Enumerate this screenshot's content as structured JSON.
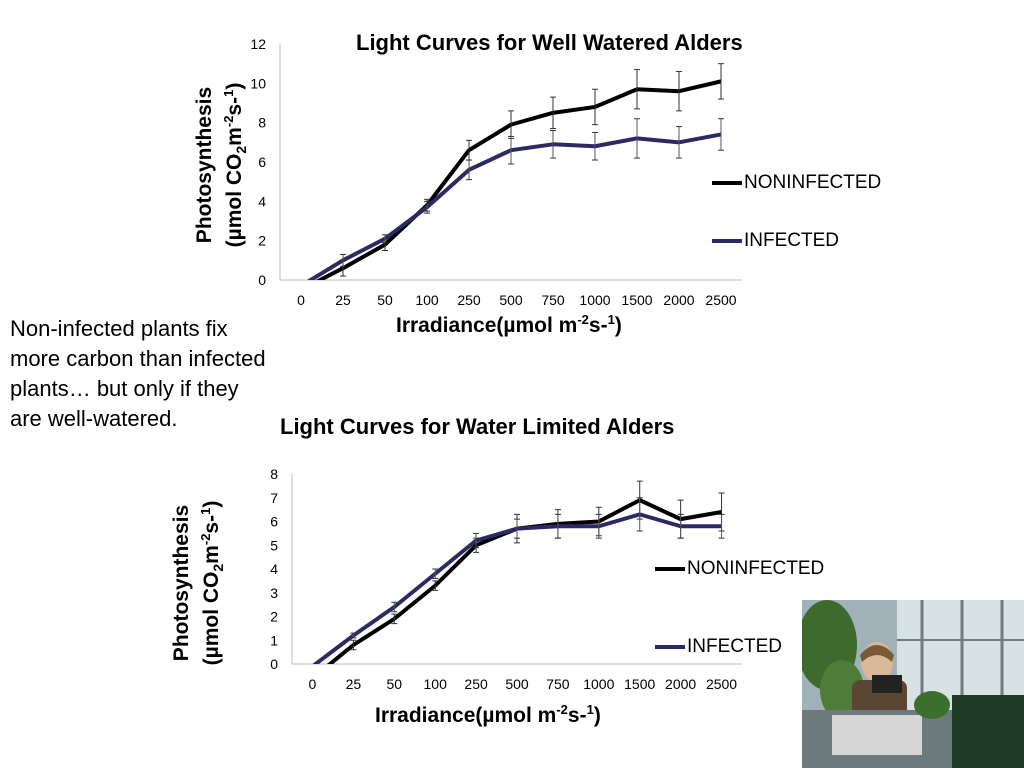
{
  "note": {
    "lines": [
      "Non-infected plants fix",
      "more carbon than infected",
      "plants… but only if they",
      "are well-watered."
    ]
  },
  "chart_data": [
    {
      "type": "line",
      "title": "Light Curves for Well Watered Alders",
      "ylabel_line1": "Photosynthesis",
      "ylabel_line2": "(µmol CO2m-2s-1)",
      "xlabel": "Irradiance(µmol m-2s-1)",
      "categories": [
        "0",
        "25",
        "50",
        "100",
        "250",
        "500",
        "750",
        "1000",
        "1500",
        "2000",
        "2500"
      ],
      "yticks": [
        "0",
        "2",
        "4",
        "6",
        "8",
        "10",
        "12"
      ],
      "ylim": [
        0,
        12
      ],
      "grid": false,
      "legend_position": "right",
      "series": [
        {
          "name": "NONINFECTED",
          "color": "#000000",
          "values": [
            -0.5,
            0.6,
            1.8,
            3.8,
            6.6,
            7.9,
            8.5,
            8.8,
            9.7,
            9.6,
            10.1
          ],
          "errors": [
            null,
            0.4,
            0.3,
            0.3,
            0.5,
            0.7,
            0.8,
            0.9,
            1.0,
            1.0,
            0.9
          ]
        },
        {
          "name": "INFECTED",
          "color": "#2b2b63",
          "values": [
            -0.3,
            1.0,
            2.1,
            3.7,
            5.6,
            6.6,
            6.9,
            6.8,
            7.2,
            7.0,
            7.4
          ],
          "errors": [
            null,
            0.3,
            0.2,
            0.3,
            0.5,
            0.7,
            0.7,
            0.7,
            1.0,
            0.8,
            0.8
          ]
        }
      ]
    },
    {
      "type": "line",
      "title": "Light Curves for Water Limited Alders",
      "ylabel_line1": "Photosynthesis",
      "ylabel_line2": "(µmol CO2m-2s-1)",
      "xlabel": "Irradiance(µmol m-2s-1)",
      "categories": [
        "0",
        "25",
        "50",
        "100",
        "250",
        "500",
        "750",
        "1000",
        "1500",
        "2000",
        "2500"
      ],
      "yticks": [
        "0",
        "1",
        "2",
        "3",
        "4",
        "5",
        "6",
        "7",
        "8"
      ],
      "ylim": [
        0,
        8
      ],
      "grid": false,
      "legend_position": "right",
      "series": [
        {
          "name": "NONINFECTED",
          "color": "#000000",
          "values": [
            -0.6,
            0.8,
            1.9,
            3.3,
            5.0,
            5.7,
            5.9,
            6.0,
            6.9,
            6.1,
            6.4
          ],
          "errors": [
            null,
            0.2,
            0.2,
            0.2,
            0.3,
            0.6,
            0.6,
            0.6,
            0.8,
            0.8,
            0.8
          ]
        },
        {
          "name": "INFECTED",
          "color": "#2b2b63",
          "values": [
            -0.1,
            1.2,
            2.4,
            3.8,
            5.2,
            5.7,
            5.8,
            5.8,
            6.3,
            5.8,
            5.8
          ],
          "errors": [
            null,
            0.1,
            0.2,
            0.2,
            0.3,
            0.4,
            0.5,
            0.5,
            0.7,
            0.5,
            0.5
          ]
        }
      ]
    }
  ],
  "photo": {
    "icon": "person-with-plant-photo"
  }
}
